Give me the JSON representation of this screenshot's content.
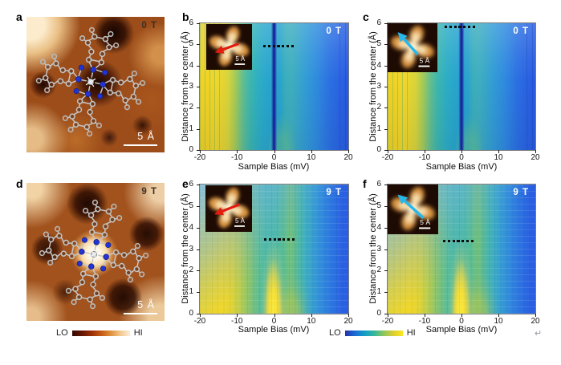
{
  "panels": {
    "a": {
      "label": "a",
      "field": "0 T",
      "scalebar": "5 Å"
    },
    "b": {
      "label": "b",
      "field": "0 T",
      "inset_scalebar": "5 Å"
    },
    "c": {
      "label": "c",
      "field": "0 T",
      "inset_scalebar": "5 Å"
    },
    "d": {
      "label": "d",
      "field": "9 T",
      "scalebar": "5 Å"
    },
    "e": {
      "label": "e",
      "field": "9 T",
      "inset_scalebar": "5 Å"
    },
    "f": {
      "label": "f",
      "field": "9 T",
      "inset_scalebar": "5 Å"
    }
  },
  "axes": {
    "xlabel": "Sample Bias (mV)",
    "ylabel": "Distance from the center (Å)",
    "xticks": [
      "-20",
      "-10",
      "0",
      "10",
      "20"
    ],
    "yticks": [
      "6",
      "5",
      "4",
      "3",
      "2",
      "1",
      "0"
    ]
  },
  "dashed_marker": {
    "dash_count": 7
  },
  "colorbars": {
    "topography": {
      "lo": "LO",
      "hi": "HI"
    },
    "spectroscopy": {
      "lo": "LO",
      "hi": "HI"
    }
  },
  "return_mark": "↵",
  "colors": {
    "red_arrow": "#e31c0e",
    "cyan_arrow": "#27b7ea",
    "map_label": "#ffffff",
    "topo_label": "#3a3028",
    "dash_marker": "#0b0b0b"
  },
  "chart_data": [
    {
      "type": "heatmap",
      "panel": "b",
      "annotation": "0 T",
      "xlabel": "Sample Bias (mV)",
      "ylabel": "Distance from the center (Å)",
      "xlim": [
        -20,
        20
      ],
      "ylim": [
        0,
        6
      ],
      "colormap": "parula (LO blue to HI yellow)",
      "features": "dI/dV line map along molecular arm marked by red arrow in STM inset (5 Å scale bar); high intensity (yellow) at bias below about -8 mV for all distances; narrow dark-blue zero-bias Kondo dip at 0 mV spanning 0 to 6 Å; low intensity (blue) at positive bias; black dashed segment from about -3 to +4 mV at about 4.5 Å"
    },
    {
      "type": "heatmap",
      "panel": "c",
      "annotation": "0 T",
      "xlabel": "Sample Bias (mV)",
      "ylabel": "Distance from the center (Å)",
      "xlim": [
        -20,
        20
      ],
      "ylim": [
        0,
        6
      ],
      "colormap": "parula (LO blue to HI yellow)",
      "features": "dI/dV line map along diagonal direction marked by cyan arrow in STM inset (5 Å scale bar); yellow high intensity at negative bias; dark-blue zero-bias dip at 0 mV; black dashed segment near 5.9 Å"
    },
    {
      "type": "heatmap",
      "panel": "e",
      "annotation": "9 T",
      "xlabel": "Sample Bias (mV)",
      "ylabel": "Distance from the center (Å)",
      "xlim": [
        -20,
        20
      ],
      "ylim": [
        0,
        6
      ],
      "colormap": "parula (LO blue to HI yellow)",
      "features": "at 9 T the zero-bias dip is replaced by a yellow high-intensity peak column centered near 0 mV extending from 0 to about 3 Å; yellow region at negative bias below -8 mV; pixelated rows visible; black dashed segment near 3.5 Å; inset STM image with red arrow and 5 Å scale bar"
    },
    {
      "type": "heatmap",
      "panel": "f",
      "annotation": "9 T",
      "xlabel": "Sample Bias (mV)",
      "ylabel": "Distance from the center (Å)",
      "xlim": [
        -20,
        20
      ],
      "ylim": [
        0,
        6
      ],
      "colormap": "parula (LO blue to HI yellow)",
      "features": "same as panel e but along the diagonal cyan-arrow direction; central yellow peak near 0 mV up to about 3 Å; black dashed segment near 3.5 Å; inset STM image with cyan arrow and 5 Å scale bar"
    }
  ]
}
